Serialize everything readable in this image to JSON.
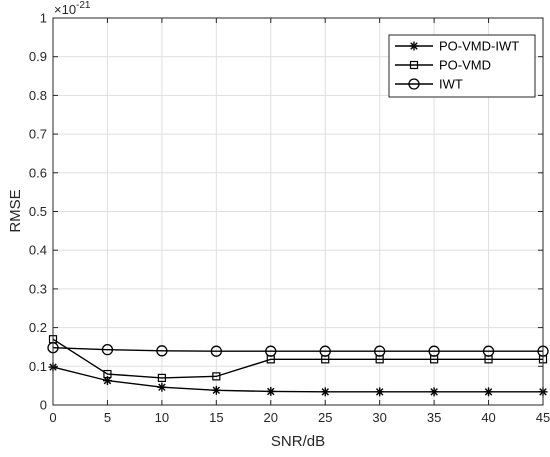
{
  "chart_data": {
    "type": "line",
    "title": "",
    "xlabel": "SNR/dB",
    "ylabel": "RMSE",
    "y_exponent_label": "×10",
    "y_exponent_power": "-21",
    "x": [
      0,
      5,
      10,
      15,
      20,
      25,
      30,
      35,
      40,
      45
    ],
    "xlim": [
      0,
      45
    ],
    "ylim": [
      0,
      1
    ],
    "x_ticks": [
      "0",
      "5",
      "10",
      "15",
      "20",
      "25",
      "30",
      "35",
      "40",
      "45"
    ],
    "y_ticks": [
      "0",
      "0.1",
      "0.2",
      "0.3",
      "0.4",
      "0.5",
      "0.6",
      "0.7",
      "0.8",
      "0.9",
      "1"
    ],
    "grid": true,
    "legend_position": "top-right",
    "series": [
      {
        "name": "PO-VMD-IWT",
        "marker": "asterisk",
        "color": "#000000",
        "values": [
          0.098,
          0.063,
          0.046,
          0.038,
          0.035,
          0.034,
          0.034,
          0.034,
          0.034,
          0.034
        ]
      },
      {
        "name": "PO-VMD",
        "marker": "square",
        "color": "#000000",
        "values": [
          0.17,
          0.08,
          0.07,
          0.074,
          0.118,
          0.118,
          0.118,
          0.118,
          0.118,
          0.118
        ]
      },
      {
        "name": "IWT",
        "marker": "circle",
        "color": "#000000",
        "values": [
          0.148,
          0.143,
          0.14,
          0.139,
          0.139,
          0.139,
          0.139,
          0.139,
          0.139,
          0.139
        ]
      }
    ]
  }
}
